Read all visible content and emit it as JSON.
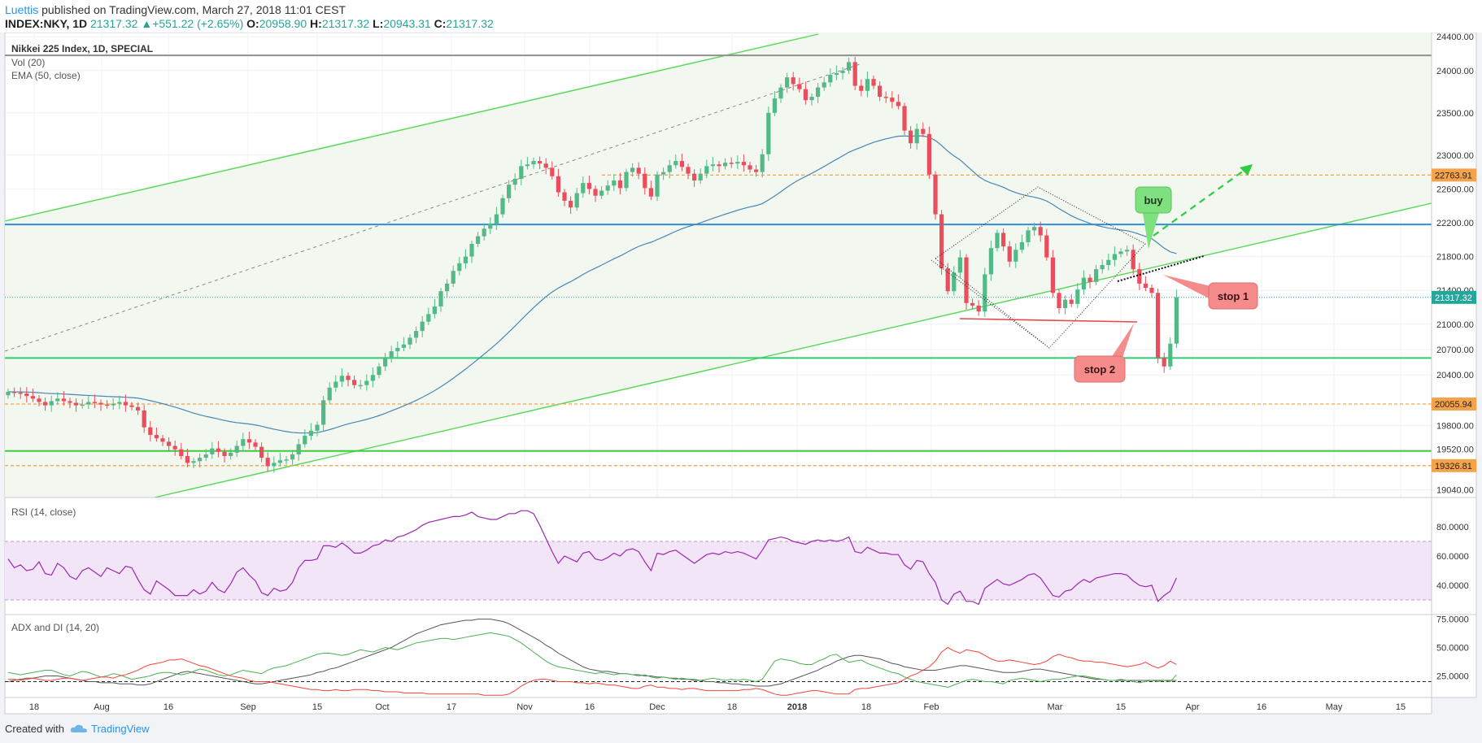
{
  "header": {
    "author": "Luettis",
    "published": "published on TradingView.com, March 27, 2018 11:01 CEST",
    "symbol": "INDEX:NKY, 1D",
    "last": "21317.32",
    "change": "+551.22 (+2.65%)",
    "open_label": "O:",
    "open": "20958.90",
    "high_label": "H:",
    "high": "21317.32",
    "low_label": "L:",
    "low": "20943.31",
    "close_label": "C:",
    "close": "21317.32"
  },
  "footer": {
    "created_with": "Created with",
    "brand": "TradingView"
  },
  "colors": {
    "up": "#26a69a",
    "up_candle": "#53b987",
    "down_candle": "#eb4d5c",
    "channel": "#55d855",
    "ema": "#4a86b5",
    "rsi": "#9c27b0",
    "adx": "#555555",
    "di_plus": "#4caf50",
    "di_minus": "#f44336",
    "blue_line": "#2f8fd8",
    "teal_line": "#2ecc71",
    "orange_dashed": "#f5a34a"
  },
  "chart_data": [
    {
      "type": "candlestick",
      "title": "Nikkei 225 Index, 1D, SPECIAL",
      "indicators": [
        "Vol (20)",
        "EMA (50, close)"
      ],
      "ylim": [
        18950,
        24450
      ],
      "y_ticks": [
        19040,
        19520,
        19800,
        20400,
        20700,
        21000,
        21400,
        21800,
        22200,
        22600,
        23000,
        23500,
        24000,
        24400
      ],
      "x_ticks": [
        "18",
        "Aug",
        "16",
        "Sep",
        "15",
        "Oct",
        "17",
        "Nov",
        "16",
        "Dec",
        "18",
        "2018",
        "18",
        "Feb",
        "Mar",
        "15",
        "Apr",
        "16",
        "May",
        "15"
      ],
      "price_labels": [
        {
          "text": "22763.91",
          "value": 22763.91,
          "style": "orange"
        },
        {
          "text": "21317.32",
          "value": 21317.32,
          "style": "green"
        },
        {
          "text": "20055.94",
          "value": 20055.94,
          "style": "orange"
        },
        {
          "text": "19326.81",
          "value": 19326.81,
          "style": "orange"
        }
      ],
      "horizontal_levels": [
        {
          "value": 24180,
          "style": "gray"
        },
        {
          "value": 22180,
          "style": "blue"
        },
        {
          "value": 20600,
          "style": "teal"
        },
        {
          "value": 19500,
          "style": "green"
        },
        {
          "value": 22763.91,
          "style": "orange-dashed"
        },
        {
          "value": 20055.94,
          "style": "orange-dashed"
        },
        {
          "value": 19326.81,
          "style": "orange-dashed"
        }
      ],
      "annotations": [
        {
          "text": "buy",
          "style": "green"
        },
        {
          "text": "stop 1",
          "style": "red"
        },
        {
          "text": "stop 2",
          "style": "red"
        }
      ],
      "closes": [
        20200,
        20190,
        20180,
        20150,
        20120,
        20080,
        20040,
        20090,
        20120,
        20090,
        20070,
        20040,
        20050,
        20080,
        20070,
        20050,
        20040,
        20060,
        20080,
        20040,
        20020,
        19980,
        19780,
        19690,
        19650,
        19610,
        19560,
        19520,
        19440,
        19360,
        19380,
        19420,
        19460,
        19530,
        19490,
        19440,
        19480,
        19560,
        19640,
        19600,
        19550,
        19420,
        19320,
        19360,
        19390,
        19400,
        19460,
        19580,
        19680,
        19740,
        19810,
        20100,
        20250,
        20320,
        20390,
        20340,
        20280,
        20280,
        20330,
        20400,
        20500,
        20610,
        20680,
        20720,
        20760,
        20840,
        20920,
        21030,
        21120,
        21210,
        21390,
        21480,
        21630,
        21720,
        21800,
        21950,
        22040,
        22130,
        22190,
        22300,
        22490,
        22650,
        22720,
        22870,
        22890,
        22930,
        22900,
        22850,
        22750,
        22560,
        22460,
        22380,
        22550,
        22670,
        22600,
        22520,
        22580,
        22640,
        22700,
        22610,
        22800,
        22850,
        22780,
        22610,
        22510,
        22770,
        22800,
        22880,
        22930,
        22860,
        22780,
        22700,
        22780,
        22870,
        22890,
        22870,
        22910,
        22900,
        22920,
        22880,
        22830,
        22800,
        23010,
        23500,
        23670,
        23800,
        23920,
        23840,
        23780,
        23650,
        23690,
        23800,
        23860,
        23950,
        23970,
        24000,
        24100,
        23820,
        23760,
        23900,
        23820,
        23690,
        23680,
        23630,
        23580,
        23290,
        23140,
        23310,
        23250,
        22770,
        22300,
        21660,
        21390,
        21610,
        21790,
        21250,
        21220,
        21150,
        21590,
        21900,
        22080,
        21920,
        21740,
        21880,
        21970,
        22110,
        22150,
        22050,
        21790,
        21370,
        21190,
        21290,
        21240,
        21410,
        21550,
        21500,
        21650,
        21700,
        21760,
        21830,
        21860,
        21880,
        21650,
        21480,
        21430,
        21370,
        20600,
        20500,
        20770,
        21320
      ]
    },
    {
      "type": "line",
      "title": "RSI (14, close)",
      "ylim": [
        20,
        100
      ],
      "y_ticks": [
        40,
        60,
        80
      ],
      "band": [
        30,
        70
      ],
      "values": [
        58,
        52,
        54,
        50,
        51,
        56,
        48,
        47,
        55,
        52,
        46,
        44,
        50,
        52,
        49,
        46,
        52,
        50,
        48,
        53,
        52,
        44,
        37,
        34,
        43,
        40,
        37,
        33,
        33,
        33,
        37,
        34,
        36,
        42,
        37,
        35,
        41,
        49,
        52,
        47,
        43,
        35,
        33,
        38,
        36,
        37,
        42,
        52,
        57,
        57,
        58,
        67,
        67,
        66,
        69,
        66,
        62,
        62,
        64,
        67,
        68,
        71,
        70,
        73,
        74,
        76,
        78,
        81,
        83,
        84,
        85,
        86,
        87,
        87,
        88,
        90,
        87,
        86,
        85,
        85,
        87,
        89,
        89,
        91,
        91,
        89,
        81,
        72,
        63,
        55,
        60,
        58,
        56,
        62,
        63,
        58,
        57,
        59,
        62,
        60,
        64,
        65,
        63,
        56,
        50,
        62,
        61,
        63,
        64,
        61,
        58,
        55,
        58,
        61,
        62,
        61,
        63,
        62,
        63,
        62,
        60,
        58,
        64,
        71,
        72,
        73,
        72,
        70,
        69,
        68,
        70,
        71,
        70,
        71,
        70,
        71,
        73,
        63,
        62,
        66,
        64,
        62,
        62,
        61,
        61,
        54,
        51,
        57,
        56,
        48,
        42,
        30,
        27,
        34,
        36,
        29,
        29,
        27,
        38,
        41,
        44,
        41,
        40,
        42,
        44,
        47,
        48,
        45,
        39,
        33,
        32,
        36,
        37,
        41,
        44,
        42,
        45,
        46,
        47,
        48,
        48,
        47,
        43,
        40,
        39,
        40,
        29,
        33,
        36,
        45
      ]
    },
    {
      "type": "line",
      "title": "ADX and DI (14, 20)",
      "ylim": [
        6,
        79
      ],
      "y_ticks": [
        25,
        50,
        75
      ],
      "threshold": 20,
      "series": [
        {
          "values": [
            20,
            21,
            22,
            23,
            23,
            24,
            25,
            25,
            25,
            24,
            23,
            22,
            21,
            20,
            20,
            19,
            19,
            19,
            18,
            18,
            18,
            17,
            17,
            18,
            20,
            22,
            24,
            26,
            28,
            29,
            28,
            27,
            26,
            25,
            24,
            23,
            22,
            21,
            20,
            19,
            18,
            18,
            19,
            20,
            21,
            22,
            23,
            24,
            25,
            26,
            28,
            29,
            31,
            32,
            34,
            36,
            38,
            40,
            42,
            44,
            46,
            48,
            50,
            53,
            56,
            59,
            62,
            64,
            66,
            68,
            70,
            71,
            72,
            73,
            74,
            74,
            75,
            75,
            75,
            74,
            73,
            71,
            68,
            65,
            62,
            59,
            56,
            52,
            49,
            45,
            42,
            39,
            36,
            33,
            31,
            30,
            29,
            29,
            28,
            27,
            27,
            26,
            26,
            25,
            25,
            24,
            24,
            23,
            23,
            22,
            22,
            21,
            21,
            20,
            20,
            19,
            19,
            18,
            18,
            17,
            17,
            16,
            16,
            16,
            17,
            18,
            20,
            22,
            24,
            26,
            28,
            30,
            33,
            35,
            38,
            40,
            42,
            43,
            43,
            42,
            41,
            40,
            38,
            36,
            35,
            33,
            32,
            31,
            30,
            30,
            30,
            31,
            32,
            33,
            34,
            34,
            33,
            32,
            31,
            30,
            29,
            28,
            28,
            28,
            29,
            30,
            31,
            31,
            30,
            29,
            28,
            27,
            26,
            25,
            24,
            23,
            22,
            22,
            21,
            21,
            21,
            21,
            21,
            21,
            21,
            21,
            21,
            21,
            21,
            21
          ]
        },
        {
          "values": [
            28,
            27,
            26,
            27,
            28,
            29,
            30,
            30,
            28,
            26,
            25,
            27,
            29,
            28,
            26,
            24,
            25,
            27,
            26,
            24,
            22,
            23,
            24,
            25,
            27,
            28,
            28,
            27,
            26,
            27,
            29,
            31,
            30,
            28,
            26,
            25,
            26,
            28,
            30,
            29,
            28,
            27,
            30,
            32,
            33,
            34,
            36,
            38,
            40,
            42,
            44,
            45,
            45,
            44,
            43,
            44,
            46,
            48,
            47,
            46,
            48,
            50,
            49,
            48,
            50,
            52,
            54,
            55,
            56,
            57,
            58,
            58,
            57,
            58,
            59,
            60,
            61,
            62,
            63,
            62,
            61,
            60,
            57,
            54,
            50,
            46,
            42,
            38,
            35,
            33,
            32,
            31,
            30,
            29,
            28,
            27,
            28,
            27,
            26,
            27,
            27,
            26,
            25,
            26,
            24,
            23,
            24,
            23,
            22,
            23,
            22,
            22,
            21,
            22,
            23,
            22,
            21,
            22,
            21,
            22,
            21,
            20,
            22,
            30,
            38,
            40,
            39,
            38,
            36,
            35,
            35,
            38,
            40,
            43,
            44,
            40,
            37,
            38,
            39,
            36,
            34,
            32,
            30,
            28,
            27,
            24,
            22,
            20,
            19,
            18,
            17,
            16,
            15,
            17,
            19,
            21,
            22,
            21,
            20,
            20,
            19,
            18,
            21,
            22,
            23,
            22,
            21,
            20,
            21,
            22,
            22,
            23,
            24,
            25,
            25,
            24,
            23,
            22,
            21,
            21,
            22,
            21,
            20,
            19,
            20,
            21,
            20,
            21,
            20,
            26
          ]
        },
        {
          "values": [
            22,
            22,
            21,
            22,
            23,
            22,
            21,
            21,
            22,
            23,
            23,
            22,
            21,
            22,
            23,
            24,
            24,
            23,
            25,
            26,
            28,
            30,
            33,
            35,
            36,
            37,
            39,
            39,
            40,
            38,
            36,
            34,
            33,
            31,
            29,
            27,
            25,
            24,
            23,
            21,
            20,
            20,
            20,
            19,
            18,
            17,
            16,
            15,
            14,
            13,
            13,
            12,
            12,
            13,
            12,
            12,
            13,
            13,
            13,
            12,
            12,
            11,
            11,
            11,
            10,
            10,
            10,
            10,
            9,
            9,
            9,
            9,
            9,
            9,
            9,
            9,
            9,
            8,
            8,
            8,
            8,
            9,
            12,
            16,
            19,
            21,
            22,
            22,
            21,
            20,
            20,
            20,
            19,
            19,
            18,
            19,
            18,
            17,
            17,
            16,
            15,
            14,
            14,
            16,
            17,
            15,
            15,
            14,
            14,
            13,
            14,
            14,
            13,
            12,
            12,
            12,
            12,
            12,
            12,
            13,
            13,
            14,
            13,
            11,
            9,
            8,
            8,
            9,
            10,
            11,
            12,
            12,
            11,
            10,
            9,
            9,
            9,
            13,
            14,
            14,
            15,
            16,
            17,
            18,
            19,
            22,
            25,
            27,
            30,
            33,
            38,
            46,
            50,
            47,
            45,
            48,
            47,
            46,
            43,
            40,
            38,
            38,
            39,
            38,
            37,
            36,
            35,
            36,
            38,
            42,
            44,
            42,
            41,
            39,
            38,
            38,
            37,
            37,
            36,
            35,
            34,
            33,
            34,
            35,
            37,
            34,
            32,
            34,
            38,
            35
          ]
        }
      ]
    }
  ]
}
